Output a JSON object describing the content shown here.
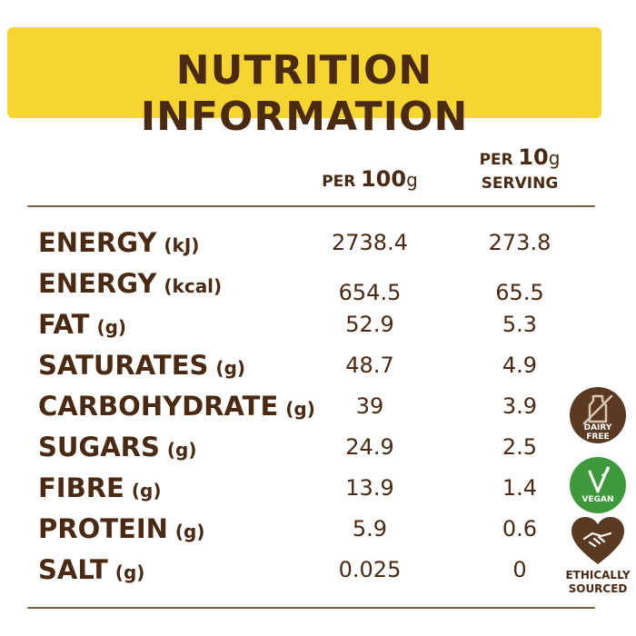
{
  "title": "NUTRITION INFORMATION",
  "columns": {
    "per100": {
      "prefix": "PER",
      "amount": "100",
      "unit": "g"
    },
    "serving": {
      "prefix": "PER",
      "amount": "10",
      "unit": "g",
      "line2": "SERVING"
    }
  },
  "rows": [
    {
      "name": "ENERGY",
      "unit": "(kJ)",
      "per100": "2738.4",
      "serving": "273.8"
    },
    {
      "name": "ENERGY",
      "unit": "(kcal)",
      "per100": "654.5",
      "serving": "65.5"
    },
    {
      "name": "FAT",
      "unit": "(g)",
      "per100": "52.9",
      "serving": "5.3"
    },
    {
      "name": "SATURATES",
      "unit": "(g)",
      "per100": "48.7",
      "serving": "4.9"
    },
    {
      "name": "CARBOHYDRATE",
      "unit": "(g)",
      "per100": "39",
      "serving": "3.9"
    },
    {
      "name": "SUGARS",
      "unit": "(g)",
      "per100": "24.9",
      "serving": "2.5"
    },
    {
      "name": "FIBRE",
      "unit": "(g)",
      "per100": "13.9",
      "serving": "1.4"
    },
    {
      "name": "PROTEIN",
      "unit": "(g)",
      "per100": "5.9",
      "serving": "0.6"
    },
    {
      "name": "SALT",
      "unit": "(g)",
      "per100": "0.025",
      "serving": "0"
    }
  ],
  "badges": {
    "dairy_free": {
      "line1": "DAIRY",
      "line2": "FREE",
      "icon": "no-milk-bottle-icon"
    },
    "vegan": {
      "label": "VEGAN",
      "icon": "leaf-check-icon"
    },
    "ethical": {
      "line1": "ETHICALLY",
      "line2": "SOURCED",
      "icon": "heart-handshake-icon"
    }
  },
  "colors": {
    "banner": "#f6d531",
    "text": "#4a2a12",
    "dairy": "#5a3a22",
    "vegan": "#3d9a3b"
  }
}
